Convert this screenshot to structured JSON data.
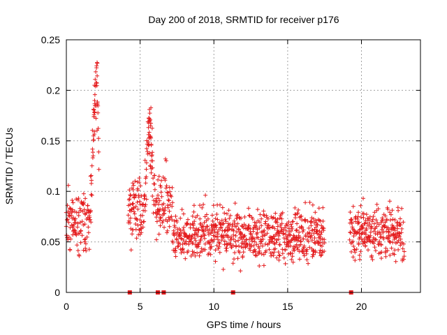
{
  "chart_data": {
    "type": "scatter",
    "title": "Day 200 of 2018, SRMTID for receiver p176",
    "xlabel": "GPS time / hours",
    "ylabel": "SRMTID / TECUs",
    "xlim": [
      0,
      24
    ],
    "ylim": [
      0,
      0.25
    ],
    "xticks": [
      0,
      5,
      10,
      15,
      20
    ],
    "xtick_labels": [
      "0",
      "5",
      "10",
      "15",
      "20"
    ],
    "yticks": [
      0,
      0.05,
      0.1,
      0.15,
      0.2,
      0.25
    ],
    "ytick_labels": [
      "0",
      "0.05",
      "0.1",
      "0.15",
      "0.2",
      "0.25"
    ],
    "grid": true,
    "marker": "+",
    "series_color": "#e41a1c",
    "segments": [
      {
        "start": 0.0,
        "end": 2.2,
        "mean": 0.072,
        "spread": 0.02
      },
      {
        "start": 4.2,
        "end": 7.2,
        "mean": 0.085,
        "spread": 0.022
      },
      {
        "start": 7.2,
        "end": 17.5,
        "mean": 0.058,
        "spread": 0.018
      },
      {
        "start": 19.2,
        "end": 22.9,
        "mean": 0.058,
        "spread": 0.018
      }
    ],
    "peaks": [
      {
        "x": 2.05,
        "value": 0.23
      },
      {
        "x": 1.9,
        "value": 0.19
      },
      {
        "x": 5.6,
        "value": 0.185
      },
      {
        "x": 5.7,
        "value": 0.15
      }
    ],
    "zero_markers": [
      4.3,
      6.2,
      6.6,
      11.3,
      19.3
    ]
  }
}
